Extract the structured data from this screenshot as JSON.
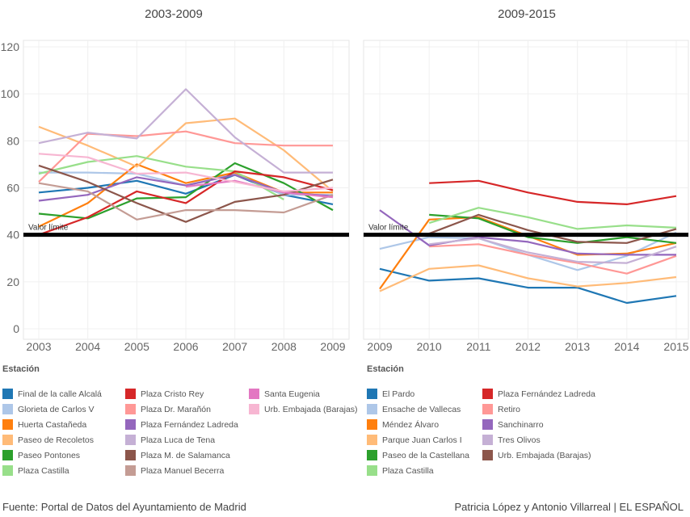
{
  "source": "Fuente: Portal de Datos del Ayuntamiento de Madrid",
  "credit": "Patricia López y Antonio Villarreal | EL ESPAÑOL",
  "chart_data": [
    {
      "type": "line",
      "title": "2003-2009",
      "x": [
        2003,
        2004,
        2005,
        2006,
        2007,
        2008,
        2009
      ],
      "ylim": [
        0,
        120
      ],
      "yticks": [
        0,
        20,
        40,
        60,
        80,
        100,
        120
      ],
      "grid": true,
      "reference_line": {
        "value": 40,
        "label": "Valor límite",
        "color": "#000000"
      },
      "legend_title": "Estación",
      "legend_placement": "bottom",
      "series": [
        {
          "name": "Final de la calle Alcalá",
          "color": "#1f77b4",
          "values": [
            58,
            60,
            63,
            57.5,
            65.5,
            57,
            53
          ]
        },
        {
          "name": "Glorieta de Carlos V",
          "color": "#aec7e8",
          "values": [
            66.5,
            66.5,
            66,
            61,
            66,
            57,
            57
          ]
        },
        {
          "name": "Huerta Castañeda",
          "color": "#ff7f0e",
          "values": [
            43.5,
            53.5,
            70,
            62,
            66.5,
            58,
            58
          ]
        },
        {
          "name": "Paseo de Recoletos",
          "color": "#ffbb78",
          "values": [
            86,
            78,
            69,
            87.5,
            89.5,
            76,
            58.5
          ]
        },
        {
          "name": "Paseo Pontones",
          "color": "#2ca02c",
          "values": [
            49,
            47,
            55.5,
            56,
            70.5,
            62,
            50.5
          ]
        },
        {
          "name": "Plaza Castilla",
          "color": "#98df8a",
          "values": [
            66,
            71,
            73.5,
            69,
            67,
            55,
            null
          ]
        },
        {
          "name": "Plaza Cristo Rey",
          "color": "#d62728",
          "values": [
            40,
            47.5,
            58.5,
            53.5,
            67,
            64.5,
            59
          ]
        },
        {
          "name": "Plaza Dr. Marañón",
          "color": "#ff9896",
          "values": [
            62.5,
            83,
            82,
            84,
            79,
            78,
            78
          ]
        },
        {
          "name": "Plaza Fernández Ladreda",
          "color": "#9467bd",
          "values": [
            54.5,
            57,
            64.5,
            61,
            65.5,
            58,
            56.5
          ]
        },
        {
          "name": "Plaza Luca de Tena",
          "color": "#c5b0d5",
          "values": [
            79,
            83.5,
            81,
            102,
            81.5,
            66.5,
            66.5
          ]
        },
        {
          "name": "Plaza M. de Salamanca",
          "color": "#8c564b",
          "values": [
            69.5,
            62.5,
            53.5,
            45.5,
            54,
            57,
            63.5
          ]
        },
        {
          "name": "Plaza Manuel Becerra",
          "color": "#c49c94",
          "values": [
            62,
            58.5,
            46.5,
            50.5,
            50.5,
            49.5,
            57
          ]
        },
        {
          "name": "Santa Eugenia",
          "color": "#e377c2",
          "values": [
            null,
            null,
            null,
            60.5,
            63,
            58,
            56
          ]
        },
        {
          "name": "Urb. Embajada (Barajas)",
          "color": "#f7b6d2",
          "values": [
            74.5,
            73,
            66,
            66.5,
            62.5,
            58.5,
            60
          ]
        }
      ]
    },
    {
      "type": "line",
      "title": "2009-2015",
      "x": [
        2009,
        2010,
        2011,
        2012,
        2013,
        2014,
        2015
      ],
      "ylim": [
        0,
        120
      ],
      "grid": true,
      "reference_line": {
        "value": 40,
        "label": "Valor límite",
        "color": "#000000"
      },
      "legend_title": "Estación",
      "legend_placement": "bottom",
      "series": [
        {
          "name": "El Pardo",
          "color": "#1f77b4",
          "values": [
            25.5,
            20.5,
            21.5,
            17.5,
            17.5,
            11,
            14
          ]
        },
        {
          "name": "Ensache de Vallecas",
          "color": "#aec7e8",
          "values": [
            34,
            39,
            38.5,
            31.5,
            25,
            31,
            41
          ]
        },
        {
          "name": "Méndez Álvaro",
          "color": "#ff7f0e",
          "values": [
            17,
            46.5,
            47.5,
            39.5,
            31.5,
            32,
            36.5
          ]
        },
        {
          "name": "Parque Juan Carlos I",
          "color": "#ffbb78",
          "values": [
            16,
            25.5,
            27,
            21.5,
            18,
            19.5,
            22
          ]
        },
        {
          "name": "Paseo de la Castellana",
          "color": "#2ca02c",
          "values": [
            null,
            48.5,
            47,
            39,
            36.5,
            39,
            36.5
          ]
        },
        {
          "name": "Plaza Castilla",
          "color": "#98df8a",
          "values": [
            null,
            45,
            51.5,
            47.5,
            42.5,
            44,
            43
          ]
        },
        {
          "name": "Plaza Fernández Ladreda",
          "color": "#d62728",
          "values": [
            null,
            62,
            63,
            58,
            54,
            53,
            56.5
          ]
        },
        {
          "name": "Retiro",
          "color": "#ff9896",
          "values": [
            null,
            35,
            36,
            31.5,
            28,
            23.5,
            31
          ]
        },
        {
          "name": "Sanchinarro",
          "color": "#9467bd",
          "values": [
            50.5,
            35.5,
            39,
            37,
            32,
            31.5,
            31.5
          ]
        },
        {
          "name": "Tres Olivos",
          "color": "#c5b0d5",
          "values": [
            null,
            36,
            38.5,
            32.5,
            28.5,
            28,
            35
          ]
        },
        {
          "name": "Urb. Embajada (Barajas)",
          "color": "#8c564b",
          "values": [
            null,
            40.5,
            48.5,
            42,
            37,
            36.5,
            42.5
          ]
        }
      ]
    }
  ]
}
